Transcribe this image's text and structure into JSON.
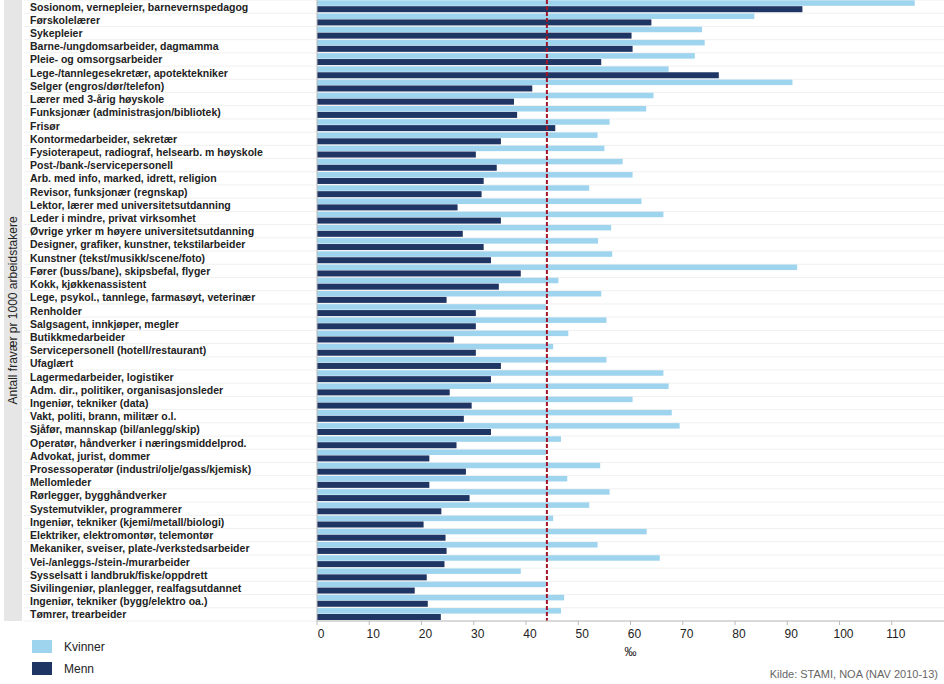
{
  "chart_data": {
    "type": "bar",
    "orientation": "horizontal",
    "y_label": "Antall fravær pr 1000 arbeidstakere",
    "x_label": "‰",
    "source": "Kilde: STAMI, NOA (NAV 2010-13)",
    "categories": [
      "Sosionom, vernepleier, barnevernspedagog",
      "Førskolelærer",
      "Sykepleier",
      "Barne-/ungdomsarbeider, dagmamma",
      "Pleie- og omsorgsarbeider",
      "Lege-/tannlegesekretær, apotektekniker",
      "Selger (engros/dør/telefon)",
      "Lærer med 3-årig høyskole",
      "Funksjonær (administrasjon/bibliotek)",
      "Frisør",
      "Kontormedarbeider, sekretær",
      "Fysioterapeut, radiograf, helsearb. m høyskole",
      "Post-/bank-/servicepersonell",
      "Arb. med info, marked, idrett, religion",
      "Revisor, funksjonær (regnskap)",
      "Lektor, lærer med universitetsutdanning",
      "Leder i mindre, privat virksomhet",
      "Øvrige yrker m høyere universitetsutdanning",
      "Designer, grafiker, kunstner, tekstilarbeider",
      "Kunstner (tekst/musikk/scene/foto)",
      "Fører (buss/bane), skipsbefal, flyger",
      "Kokk, kjøkkenassistent",
      "Lege, psykol., tannlege, farmasøyt, veterinær",
      "Renholder",
      "Salgsagent, innkjøper, megler",
      "Butikkmedarbeider",
      "Servicepersonell (hotell/restaurant)",
      "Ufaglært",
      "Lagermedarbeider, logistiker",
      "Adm. dir., politiker, organisasjonsleder",
      "Ingeniør, tekniker (data)",
      "Vakt, politi, brann, militær o.l.",
      "Sjåfør, mannskap (bil/anlegg/skip)",
      "Operatør, håndverker i næringsmiddelprod.",
      "Advokat, jurist, dommer",
      "Prosessoperatør (industri/olje/gass/kjemisk)",
      "Mellomleder",
      "Rørlegger, bygghåndverker",
      "Systemutvikler, programmerer",
      "Ingeniør, tekniker (kjemi/metall/biologi)",
      "Elektriker, elektromontør, telemontør",
      "Mekaniker, sveiser, plate-/verkstedsarbeider",
      "Vei-/anleggs-/stein-/murarbeider",
      "Sysselsatt i landbruk/fiske/oppdrett",
      "Sivilingeniør, planlegger, realfagsutdannet",
      "Ingeniør, tekniker (bygg/elektro oa.)",
      "Tømrer, trearbeider"
    ],
    "series": [
      {
        "name": "Kvinner",
        "color": "#9fd4ef",
        "values": [
          114.4,
          83.7,
          73.7,
          74.2,
          72.3,
          67.3,
          91.0,
          64.4,
          63.0,
          56.0,
          53.7,
          55.0,
          58.5,
          60.4,
          52.1,
          62.1,
          66.3,
          56.3,
          53.8,
          56.5,
          91.9,
          46.2,
          54.4,
          43.8,
          55.4,
          48.1,
          45.2,
          55.4,
          66.3,
          67.3,
          60.4,
          67.9,
          69.4,
          46.7,
          43.8,
          54.2,
          47.9,
          56.0,
          52.1,
          45.2,
          63.1,
          53.7,
          65.6,
          39.0,
          43.8,
          47.3,
          46.7
        ]
      },
      {
        "name": "Menn",
        "color": "#1f3563",
        "values": [
          92.9,
          64.0,
          60.2,
          60.4,
          54.4,
          76.9,
          41.2,
          37.7,
          38.3,
          45.6,
          35.2,
          30.4,
          34.4,
          31.9,
          31.5,
          26.9,
          35.2,
          27.9,
          31.9,
          33.3,
          39.0,
          34.8,
          24.8,
          30.4,
          30.4,
          26.2,
          30.4,
          35.2,
          33.3,
          25.4,
          29.6,
          28.1,
          33.3,
          26.7,
          21.5,
          28.5,
          21.5,
          29.2,
          23.8,
          20.4,
          24.6,
          24.8,
          24.4,
          21.0,
          18.7,
          21.2,
          23.7
        ]
      }
    ],
    "reference_line": 44,
    "xlim": [
      0,
      120
    ],
    "xticks": [
      0,
      10,
      20,
      30,
      40,
      50,
      60,
      70,
      80,
      90,
      100,
      110
    ],
    "legend": "bottom-left",
    "grid": false
  }
}
